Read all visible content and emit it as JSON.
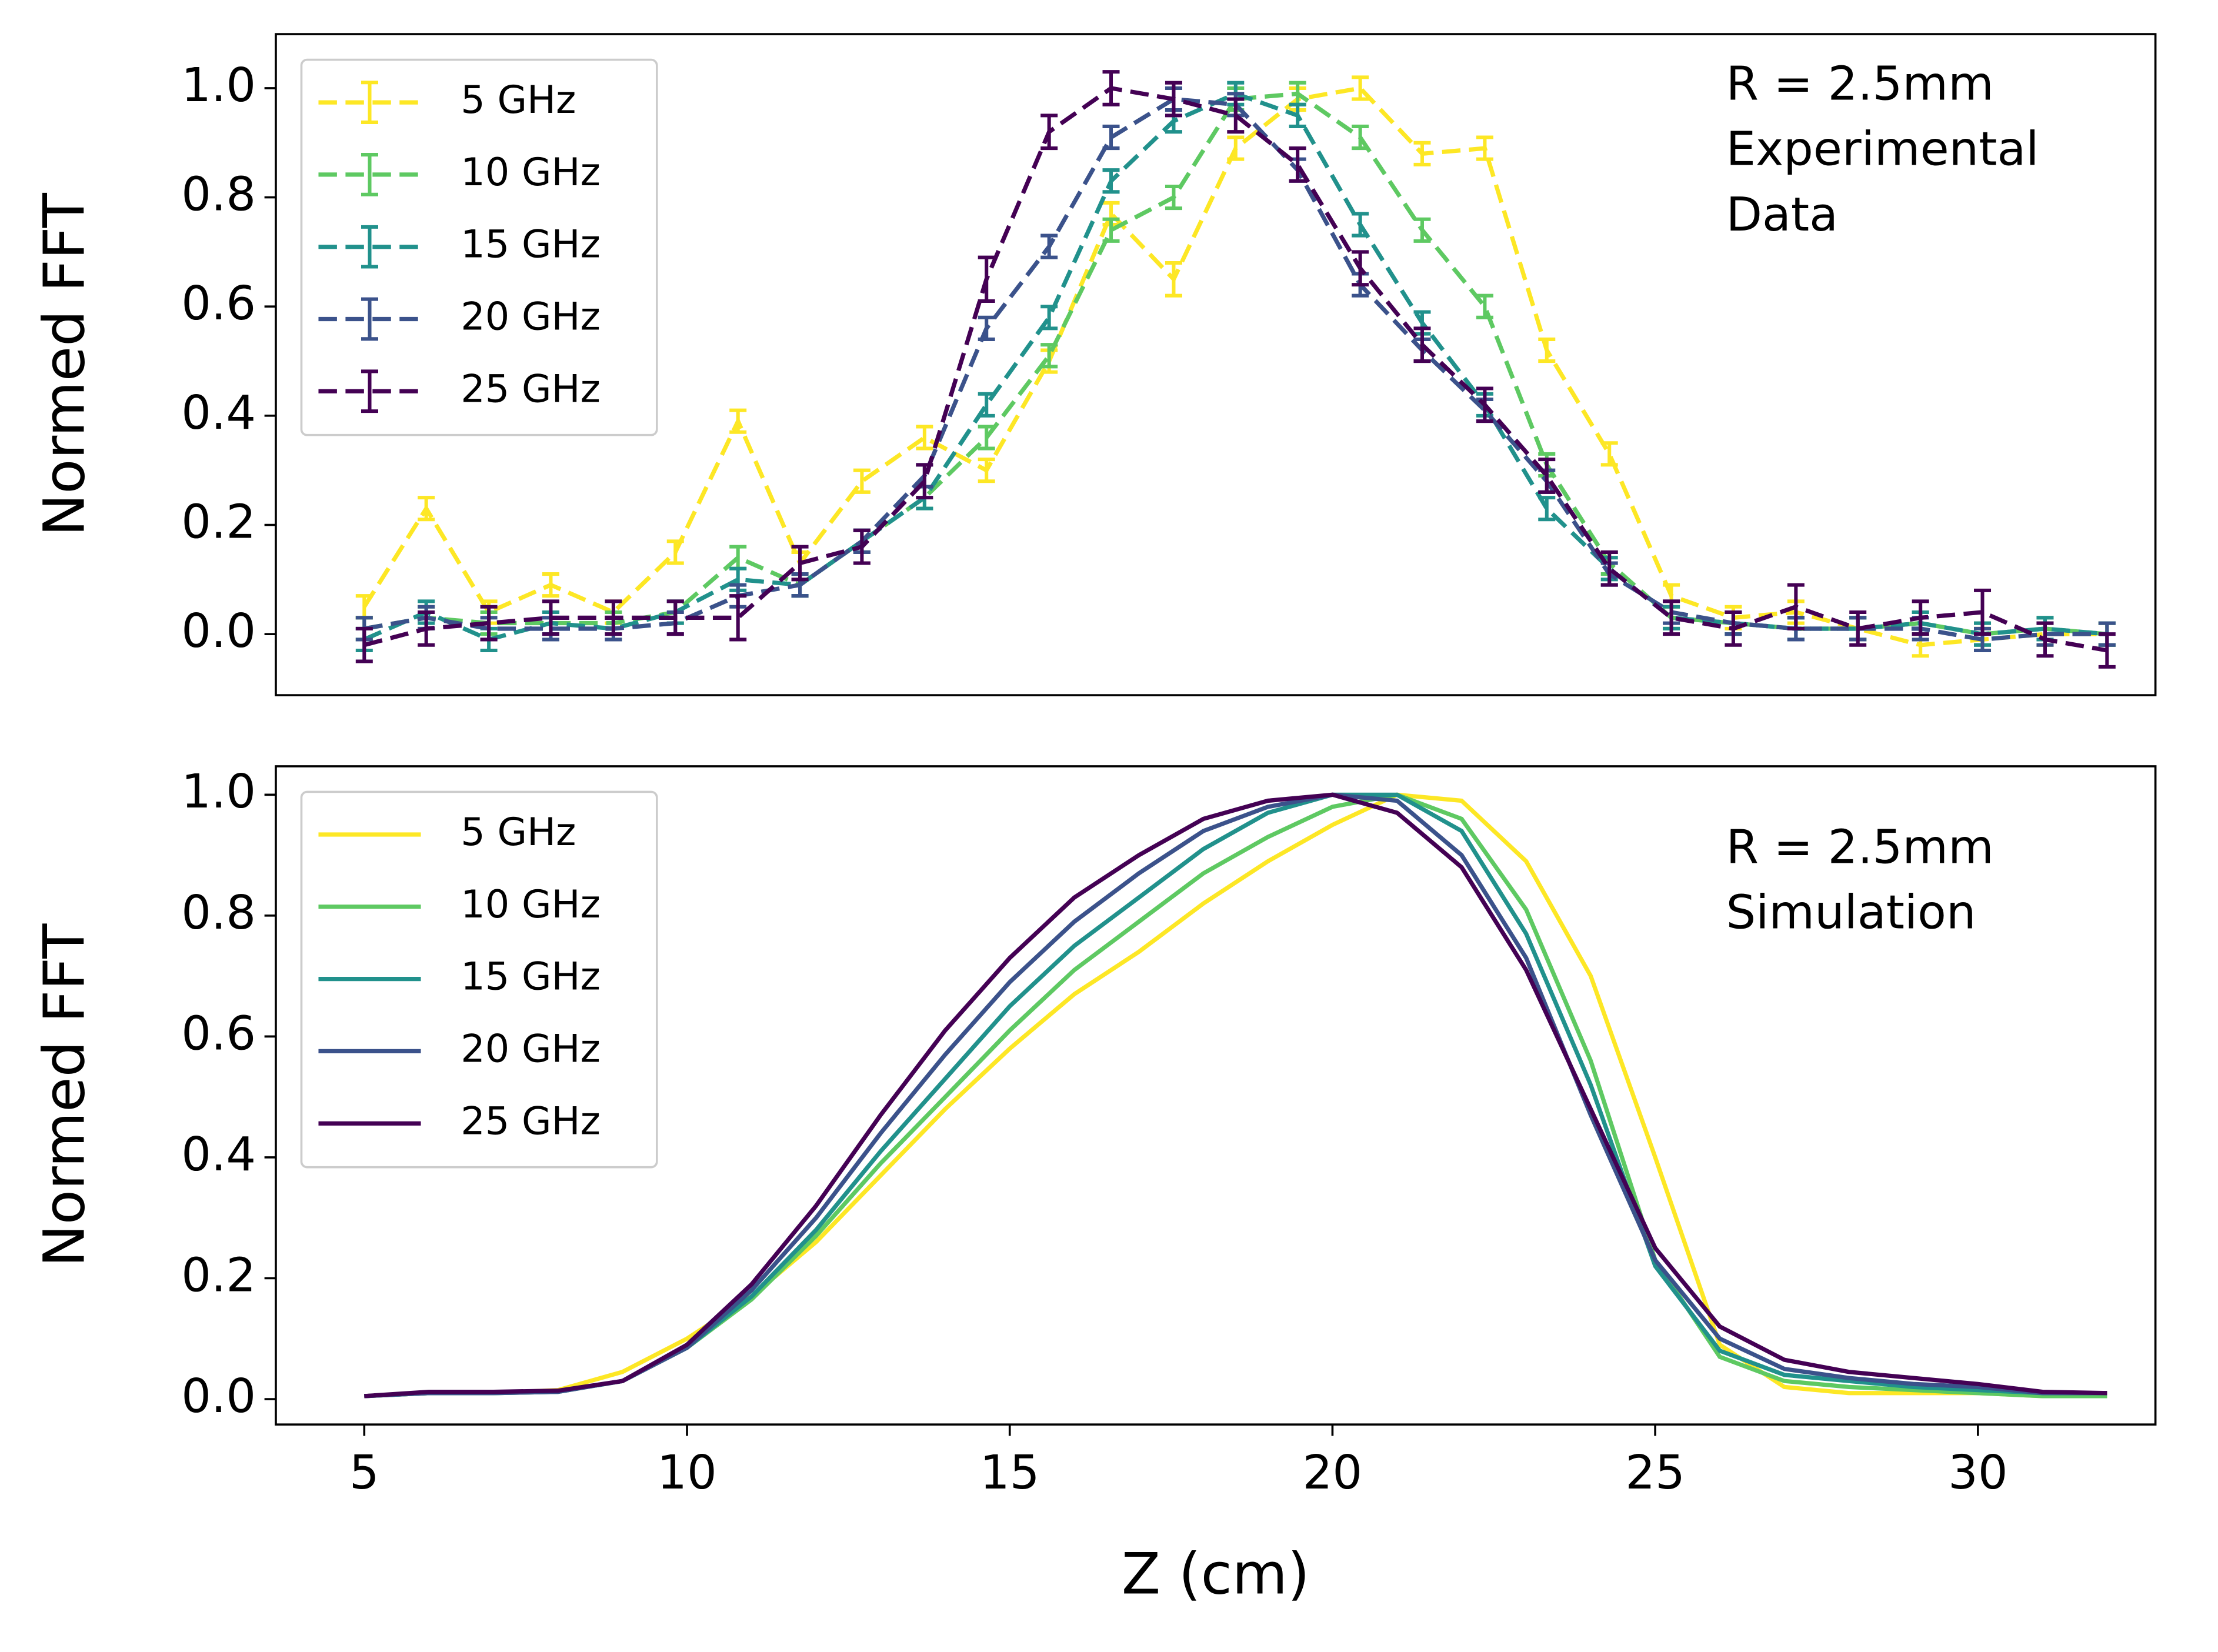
{
  "chart_data": [
    {
      "type": "errorbar",
      "ylabel": "Normed FFT",
      "annotation": [
        "R = 2.5mm",
        "Experimental",
        "Data"
      ],
      "linestyle": "dashed",
      "legend": "upper left",
      "x": [
        5,
        5.96,
        6.93,
        7.89,
        8.86,
        9.82,
        10.79,
        11.75,
        12.71,
        13.68,
        14.64,
        15.61,
        16.57,
        17.54,
        18.5,
        19.46,
        20.43,
        21.39,
        22.36,
        23.32,
        24.29,
        25.25,
        26.21,
        27.18,
        28.14,
        29.11,
        30.07,
        31.04,
        32
      ],
      "xlim": [
        3.63,
        32.75
      ],
      "ylim": [
        -0.112,
        1.099
      ],
      "yticks": [
        {
          "value": 0,
          "label": "0.0"
        },
        {
          "value": 0.2,
          "label": "0.2"
        },
        {
          "value": 0.4,
          "label": "0.4"
        },
        {
          "value": 0.6,
          "label": "0.6"
        },
        {
          "value": 0.8,
          "label": "0.8"
        },
        {
          "value": 1,
          "label": "1.0"
        }
      ],
      "series": [
        {
          "name": "5 GHz",
          "color": "#fde725",
          "values": [
            0.05,
            0.23,
            0.04,
            0.09,
            0.04,
            0.15,
            0.39,
            0.13,
            0.28,
            0.36,
            0.3,
            0.5,
            0.77,
            0.65,
            0.89,
            0.98,
            1.0,
            0.88,
            0.89,
            0.52,
            0.33,
            0.07,
            0.03,
            0.04,
            0.01,
            -0.02,
            -0.01,
            0.0,
            0.0
          ],
          "errors": [
            0.02,
            0.02,
            0.02,
            0.02,
            0.02,
            0.02,
            0.02,
            0.02,
            0.02,
            0.02,
            0.02,
            0.02,
            0.02,
            0.03,
            0.02,
            0.02,
            0.02,
            0.02,
            0.02,
            0.02,
            0.02,
            0.02,
            0.02,
            0.02,
            0.02,
            0.02,
            0.02,
            0.02,
            0.02
          ]
        },
        {
          "name": "10 GHz",
          "color": "#5ec962",
          "values": [
            0.01,
            0.03,
            0.02,
            0.02,
            0.02,
            0.04,
            0.14,
            0.09,
            0.17,
            0.25,
            0.36,
            0.51,
            0.74,
            0.8,
            0.98,
            0.99,
            0.91,
            0.74,
            0.6,
            0.31,
            0.13,
            0.03,
            0.02,
            0.01,
            0.01,
            0.02,
            0.0,
            0.01,
            0.0
          ],
          "errors": [
            0.02,
            0.02,
            0.02,
            0.02,
            0.02,
            0.02,
            0.02,
            0.02,
            0.02,
            0.02,
            0.02,
            0.02,
            0.02,
            0.02,
            0.02,
            0.02,
            0.02,
            0.02,
            0.02,
            0.02,
            0.02,
            0.02,
            0.02,
            0.02,
            0.02,
            0.02,
            0.02,
            0.02,
            0.02
          ]
        },
        {
          "name": "15 GHz",
          "color": "#21918c",
          "values": [
            -0.01,
            0.04,
            -0.01,
            0.02,
            0.01,
            0.04,
            0.1,
            0.09,
            0.17,
            0.25,
            0.42,
            0.58,
            0.83,
            0.94,
            0.99,
            0.95,
            0.75,
            0.57,
            0.42,
            0.23,
            0.12,
            0.03,
            0.02,
            0.01,
            0.01,
            0.02,
            0.0,
            0.01,
            0.0
          ],
          "errors": [
            0.02,
            0.02,
            0.02,
            0.02,
            0.02,
            0.02,
            0.02,
            0.02,
            0.02,
            0.02,
            0.02,
            0.02,
            0.02,
            0.02,
            0.02,
            0.02,
            0.02,
            0.02,
            0.02,
            0.02,
            0.02,
            0.02,
            0.02,
            0.02,
            0.02,
            0.02,
            0.02,
            0.02,
            0.02
          ]
        },
        {
          "name": "20 GHz",
          "color": "#3b528b",
          "values": [
            0.01,
            0.03,
            0.01,
            0.01,
            0.01,
            0.02,
            0.07,
            0.09,
            0.17,
            0.29,
            0.56,
            0.71,
            0.91,
            0.98,
            0.97,
            0.85,
            0.64,
            0.52,
            0.41,
            0.28,
            0.11,
            0.04,
            0.02,
            0.01,
            0.01,
            0.01,
            -0.01,
            0.0,
            0.0
          ],
          "errors": [
            0.02,
            0.02,
            0.02,
            0.02,
            0.02,
            0.02,
            0.02,
            0.02,
            0.02,
            0.02,
            0.02,
            0.02,
            0.02,
            0.02,
            0.02,
            0.02,
            0.02,
            0.02,
            0.02,
            0.02,
            0.02,
            0.02,
            0.02,
            0.02,
            0.02,
            0.02,
            0.02,
            0.02,
            0.02
          ]
        },
        {
          "name": "25 GHz",
          "color": "#440154",
          "values": [
            -0.02,
            0.01,
            0.02,
            0.03,
            0.03,
            0.03,
            0.03,
            0.13,
            0.16,
            0.28,
            0.65,
            0.92,
            1.0,
            0.98,
            0.95,
            0.86,
            0.67,
            0.53,
            0.42,
            0.29,
            0.12,
            0.03,
            0.01,
            0.05,
            0.01,
            0.03,
            0.04,
            -0.01,
            -0.03
          ],
          "errors": [
            0.03,
            0.03,
            0.03,
            0.03,
            0.03,
            0.03,
            0.04,
            0.03,
            0.03,
            0.03,
            0.04,
            0.03,
            0.03,
            0.03,
            0.03,
            0.03,
            0.03,
            0.03,
            0.03,
            0.03,
            0.03,
            0.03,
            0.03,
            0.04,
            0.03,
            0.03,
            0.04,
            0.03,
            0.03
          ]
        }
      ]
    },
    {
      "type": "line",
      "ylabel": "Normed FFT",
      "xlabel": "Z (cm)",
      "annotation": [
        "R = 2.5mm",
        "Simulation"
      ],
      "linestyle": "solid",
      "legend": "upper left",
      "x": [
        5,
        6,
        7,
        8,
        9,
        10,
        11,
        12,
        13,
        14,
        15,
        16,
        17,
        18,
        19,
        20,
        21,
        22,
        23,
        24,
        25,
        26,
        27,
        28,
        29,
        30,
        31,
        32
      ],
      "xlim": [
        3.63,
        32.75
      ],
      "ylim": [
        -0.042,
        1.047
      ],
      "xticks": [
        5,
        10,
        15,
        20,
        25,
        30
      ],
      "yticks": [
        {
          "value": 0,
          "label": "0.0"
        },
        {
          "value": 0.2,
          "label": "0.2"
        },
        {
          "value": 0.4,
          "label": "0.4"
        },
        {
          "value": 0.6,
          "label": "0.6"
        },
        {
          "value": 0.8,
          "label": "0.8"
        },
        {
          "value": 1,
          "label": "1.0"
        }
      ],
      "series": [
        {
          "name": "5 GHz",
          "color": "#fde725",
          "values": [
            0.005,
            0.01,
            0.01,
            0.015,
            0.045,
            0.1,
            0.17,
            0.26,
            0.37,
            0.48,
            0.58,
            0.67,
            0.74,
            0.82,
            0.89,
            0.95,
            1.0,
            0.99,
            0.89,
            0.7,
            0.4,
            0.09,
            0.02,
            0.01,
            0.01,
            0.01,
            0.005,
            0.005
          ]
        },
        {
          "name": "10 GHz",
          "color": "#5ec962",
          "values": [
            0.005,
            0.01,
            0.01,
            0.012,
            0.03,
            0.085,
            0.165,
            0.27,
            0.39,
            0.5,
            0.61,
            0.71,
            0.79,
            0.87,
            0.93,
            0.98,
            1.0,
            0.96,
            0.81,
            0.56,
            0.23,
            0.07,
            0.03,
            0.02,
            0.015,
            0.01,
            0.005,
            0.005
          ]
        },
        {
          "name": "15 GHz",
          "color": "#21918c",
          "values": [
            0.005,
            0.01,
            0.01,
            0.012,
            0.03,
            0.085,
            0.17,
            0.28,
            0.41,
            0.53,
            0.65,
            0.75,
            0.83,
            0.91,
            0.97,
            1.0,
            1.0,
            0.94,
            0.77,
            0.52,
            0.22,
            0.08,
            0.04,
            0.03,
            0.02,
            0.015,
            0.01,
            0.01
          ]
        },
        {
          "name": "20 GHz",
          "color": "#3b528b",
          "values": [
            0.005,
            0.01,
            0.01,
            0.012,
            0.03,
            0.085,
            0.18,
            0.3,
            0.44,
            0.57,
            0.69,
            0.79,
            0.87,
            0.94,
            0.98,
            1.0,
            0.99,
            0.9,
            0.73,
            0.47,
            0.23,
            0.1,
            0.05,
            0.035,
            0.025,
            0.02,
            0.01,
            0.01
          ]
        },
        {
          "name": "25 GHz",
          "color": "#440154",
          "values": [
            0.005,
            0.012,
            0.012,
            0.014,
            0.03,
            0.09,
            0.19,
            0.32,
            0.47,
            0.61,
            0.73,
            0.83,
            0.9,
            0.96,
            0.99,
            1.0,
            0.97,
            0.88,
            0.71,
            0.48,
            0.25,
            0.12,
            0.065,
            0.045,
            0.035,
            0.025,
            0.012,
            0.01
          ]
        }
      ]
    }
  ]
}
